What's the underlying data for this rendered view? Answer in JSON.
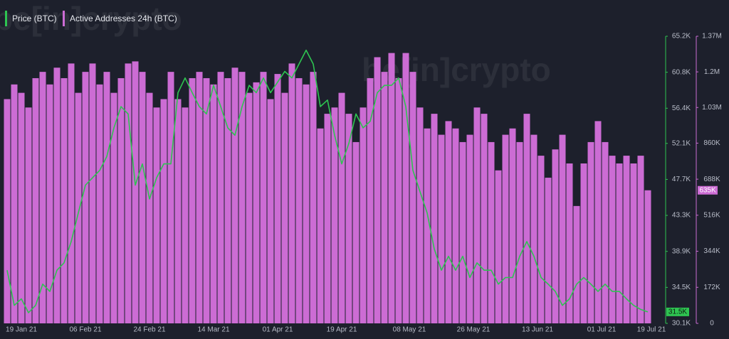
{
  "chart_data": {
    "type": "combo",
    "watermark": "be[in]crypto",
    "x": [
      "2021-01-15",
      "2021-01-17",
      "2021-01-19",
      "2021-01-21",
      "2021-01-23",
      "2021-01-25",
      "2021-01-27",
      "2021-01-29",
      "2021-01-31",
      "2021-02-02",
      "2021-02-04",
      "2021-02-06",
      "2021-02-08",
      "2021-02-10",
      "2021-02-12",
      "2021-02-14",
      "2021-02-16",
      "2021-02-18",
      "2021-02-20",
      "2021-02-22",
      "2021-02-24",
      "2021-02-26",
      "2021-02-28",
      "2021-03-02",
      "2021-03-04",
      "2021-03-06",
      "2021-03-08",
      "2021-03-10",
      "2021-03-12",
      "2021-03-14",
      "2021-03-16",
      "2021-03-18",
      "2021-03-20",
      "2021-03-22",
      "2021-03-24",
      "2021-03-26",
      "2021-03-28",
      "2021-03-30",
      "2021-04-01",
      "2021-04-03",
      "2021-04-05",
      "2021-04-07",
      "2021-04-09",
      "2021-04-11",
      "2021-04-13",
      "2021-04-15",
      "2021-04-17",
      "2021-04-19",
      "2021-04-21",
      "2021-04-23",
      "2021-04-25",
      "2021-04-27",
      "2021-04-29",
      "2021-05-01",
      "2021-05-03",
      "2021-05-05",
      "2021-05-07",
      "2021-05-09",
      "2021-05-11",
      "2021-05-13",
      "2021-05-15",
      "2021-05-17",
      "2021-05-19",
      "2021-05-21",
      "2021-05-23",
      "2021-05-25",
      "2021-05-27",
      "2021-05-29",
      "2021-05-31",
      "2021-06-02",
      "2021-06-04",
      "2021-06-06",
      "2021-06-08",
      "2021-06-10",
      "2021-06-12",
      "2021-06-14",
      "2021-06-16",
      "2021-06-18",
      "2021-06-20",
      "2021-06-22",
      "2021-06-24",
      "2021-06-26",
      "2021-06-28",
      "2021-06-30",
      "2021-07-02",
      "2021-07-04",
      "2021-07-06",
      "2021-07-08",
      "2021-07-10",
      "2021-07-12",
      "2021-07-14"
    ],
    "xlim": [
      "2021-01-15",
      "2021-07-19"
    ],
    "xticks": [
      {
        "value": "2021-01-19",
        "label": "19 Jan 21"
      },
      {
        "value": "2021-02-06",
        "label": "06 Feb 21"
      },
      {
        "value": "2021-02-24",
        "label": "24 Feb 21"
      },
      {
        "value": "2021-03-14",
        "label": "14 Mar 21"
      },
      {
        "value": "2021-04-01",
        "label": "01 Apr 21"
      },
      {
        "value": "2021-04-19",
        "label": "19 Apr 21"
      },
      {
        "value": "2021-05-08",
        "label": "08 May 21"
      },
      {
        "value": "2021-05-26",
        "label": "26 May 21"
      },
      {
        "value": "2021-06-13",
        "label": "13 Jun 21"
      },
      {
        "value": "2021-07-01",
        "label": "01 Jul 21"
      },
      {
        "value": "2021-07-19",
        "label": "19 Jul 21"
      }
    ],
    "ylim": [
      30100,
      65200
    ],
    "yticks": [
      {
        "value": 30100,
        "label": "30.1K"
      },
      {
        "value": 34500,
        "label": "34.5K"
      },
      {
        "value": 38900,
        "label": "38.9K"
      },
      {
        "value": 43300,
        "label": "43.3K"
      },
      {
        "value": 47700,
        "label": "47.7K"
      },
      {
        "value": 52100,
        "label": "52.1K"
      },
      {
        "value": 56400,
        "label": "56.4K"
      },
      {
        "value": 60800,
        "label": "60.8K"
      },
      {
        "value": 65200,
        "label": "65.2K"
      }
    ],
    "y2lim": [
      0,
      1370000
    ],
    "y2ticks": [
      0,
      {
        "value": 172000,
        "label": "172K"
      },
      {
        "value": 344000,
        "label": "344K"
      },
      {
        "value": 516000,
        "label": "516K"
      },
      {
        "value": 688000,
        "label": "688K"
      },
      {
        "value": 860000,
        "label": "860K"
      },
      {
        "value": 1030000,
        "label": "1.03M"
      },
      {
        "value": 1200000,
        "label": "1.2M"
      },
      {
        "value": 1370000,
        "label": "1.37M"
      }
    ],
    "series": [
      {
        "name": "Price (BTC)",
        "type": "line",
        "color": "#2ec451",
        "last_label": "31.5K",
        "values": [
          36600,
          32300,
          33100,
          31400,
          32300,
          34900,
          34000,
          36600,
          37500,
          40100,
          43600,
          47000,
          47900,
          48800,
          50500,
          54000,
          56600,
          55700,
          47000,
          49600,
          45300,
          47900,
          49600,
          49600,
          58300,
          60100,
          58300,
          56600,
          55700,
          59200,
          56600,
          54000,
          53100,
          56600,
          59200,
          58300,
          60100,
          58300,
          59600,
          60900,
          60100,
          61800,
          63500,
          61800,
          56600,
          57400,
          53100,
          49600,
          52100,
          55700,
          54000,
          54800,
          58300,
          59200,
          59200,
          60100,
          56600,
          48800,
          46200,
          43600,
          39200,
          36600,
          38300,
          36600,
          38300,
          35700,
          37500,
          36600,
          36600,
          34900,
          35700,
          35700,
          38300,
          40100,
          38300,
          35700,
          34900,
          34000,
          32300,
          33100,
          34900,
          35700,
          34900,
          34000,
          34900,
          34000,
          34000,
          33100,
          32300,
          31800,
          31500
        ]
      },
      {
        "name": "Active Addresses 24h (BTC)",
        "type": "bar",
        "axis": "y2",
        "color": "#cc6cd4",
        "last_label": "635K",
        "values": [
          1070000,
          1140000,
          1100000,
          1030000,
          1170000,
          1200000,
          1140000,
          1220000,
          1170000,
          1240000,
          1100000,
          1200000,
          1240000,
          1140000,
          1200000,
          1100000,
          1170000,
          1240000,
          1250000,
          1200000,
          1100000,
          1030000,
          1070000,
          1200000,
          1070000,
          1030000,
          1170000,
          1200000,
          1170000,
          1140000,
          1200000,
          1170000,
          1220000,
          1200000,
          1100000,
          1150000,
          1200000,
          1070000,
          1190000,
          1100000,
          1240000,
          1170000,
          1140000,
          1200000,
          930000,
          1000000,
          1030000,
          1100000,
          1000000,
          865000,
          1030000,
          1170000,
          1270000,
          1200000,
          1290000,
          1170000,
          1290000,
          1200000,
          1030000,
          930000,
          1000000,
          900000,
          965000,
          930000,
          865000,
          900000,
          1030000,
          1000000,
          865000,
          730000,
          900000,
          930000,
          865000,
          1000000,
          900000,
          800000,
          695000,
          830000,
          900000,
          763000,
          560000,
          763000,
          865000,
          965000,
          865000,
          800000,
          763000,
          800000,
          763000,
          800000,
          635000
        ]
      }
    ]
  }
}
